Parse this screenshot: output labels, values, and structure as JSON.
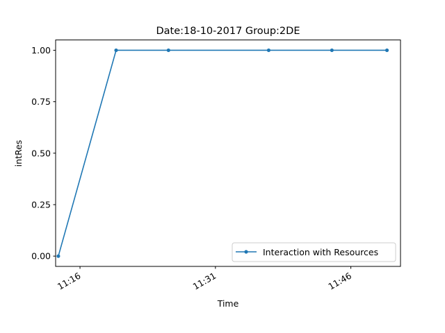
{
  "chart_data": {
    "type": "line",
    "title": "Date:18-10-2017  Group:2DE",
    "xlabel": "Time",
    "ylabel": "intRes",
    "x_tick_labels": [
      "11:16",
      "11:31",
      "11:46"
    ],
    "x_tick_values": [
      "11:16",
      "11:31",
      "11:46"
    ],
    "y_tick_labels": [
      "0.00",
      "0.25",
      "0.50",
      "0.75",
      "1.00"
    ],
    "y_tick_values": [
      0,
      0.25,
      0.5,
      0.75,
      1.0
    ],
    "xlim": [
      "11:13.3",
      "11:51.5"
    ],
    "ylim": [
      -0.05,
      1.05
    ],
    "grid": false,
    "legend_position": "lower right",
    "series": [
      {
        "name": "Interaction with Resources",
        "color": "#1f77b4",
        "marker": "circle",
        "x": [
          "11:13.6",
          "11:20.0",
          "11:25.8",
          "11:36.9",
          "11:43.9",
          "11:50.0"
        ],
        "y": [
          0,
          1,
          1,
          1,
          1,
          1
        ]
      }
    ]
  }
}
